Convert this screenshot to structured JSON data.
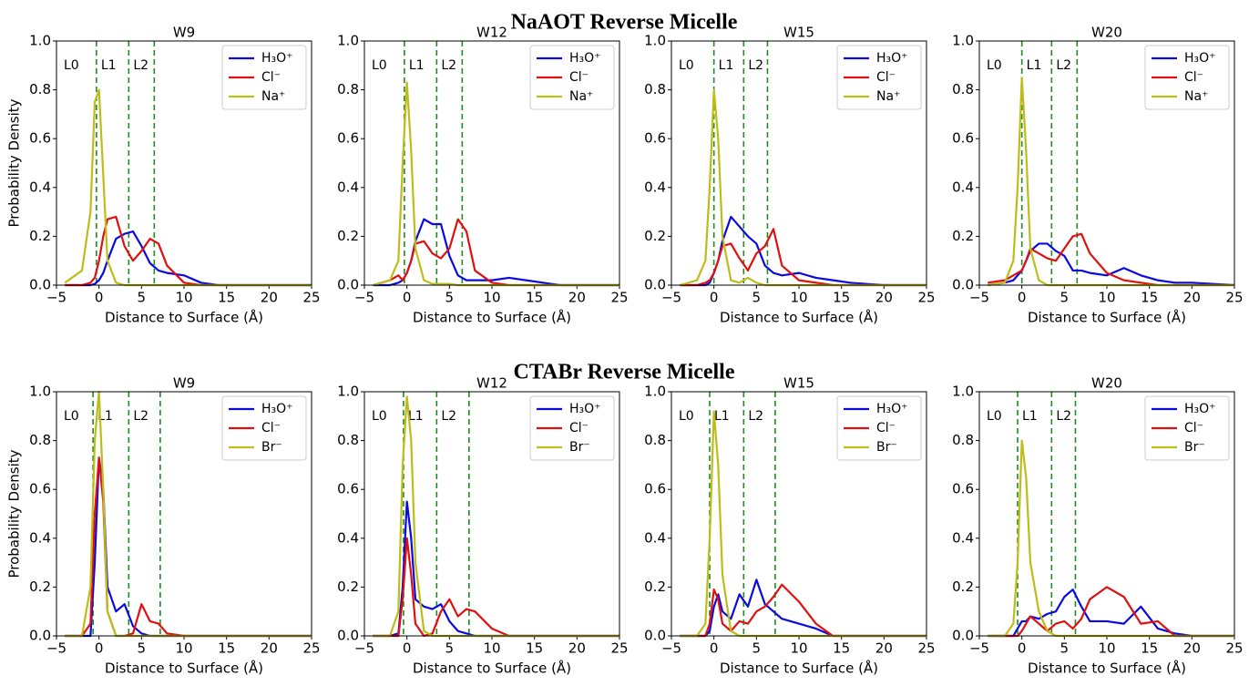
{
  "headings": [
    "NaAOT Reverse Micelle",
    "CTABr Reverse Micelle"
  ],
  "chart_data": [
    {
      "type": "line",
      "title": "W9",
      "x_label": "Distance to Surface (Å)",
      "y_label": "Probability Density",
      "xlim": [
        -5,
        25
      ],
      "ylim": [
        0,
        1
      ],
      "xticks": [
        {
          "value": -5,
          "label": "−5"
        },
        0,
        5,
        10,
        15,
        20,
        25
      ],
      "yticks": [
        {
          "value": 0,
          "label": "0.0"
        },
        0.2,
        0.4,
        0.6,
        0.8,
        {
          "value": 1,
          "label": "1.0"
        }
      ],
      "vlines": [
        -0.3,
        3.5,
        6.5
      ],
      "region_labels": [
        "L0",
        "L1",
        "L2"
      ],
      "legend": "upper right",
      "x": [
        -4,
        -2,
        -1,
        -0.5,
        0,
        0.5,
        1,
        2,
        3,
        4,
        5,
        6,
        7,
        8,
        10,
        12,
        14,
        16,
        18,
        20,
        25
      ],
      "series": [
        {
          "name": "H₃O⁺",
          "color": "#0a0ae0",
          "values": [
            0,
            0,
            0,
            0.005,
            0.02,
            0.05,
            0.1,
            0.19,
            0.21,
            0.22,
            0.16,
            0.09,
            0.06,
            0.05,
            0.04,
            0.01,
            0,
            0,
            0,
            0,
            0
          ]
        },
        {
          "name": "Cl⁻",
          "color": "#e01010",
          "values": [
            0,
            0,
            0.01,
            0.03,
            0.1,
            0.2,
            0.27,
            0.28,
            0.16,
            0.1,
            0.14,
            0.19,
            0.17,
            0.08,
            0.01,
            0,
            0,
            0,
            0,
            0,
            0
          ]
        },
        {
          "name": "Na⁺",
          "color": "#bdbd1a",
          "values": [
            0.01,
            0.06,
            0.3,
            0.75,
            0.8,
            0.45,
            0.1,
            0.01,
            0,
            0,
            0,
            0,
            0,
            0,
            0,
            0,
            0,
            0,
            0,
            0,
            0
          ]
        }
      ]
    },
    {
      "type": "line",
      "title": "W12",
      "x_label": "Distance to Surface (Å)",
      "xlim": [
        -5,
        25
      ],
      "ylim": [
        0,
        1
      ],
      "xticks": [
        {
          "value": -5,
          "label": "−5"
        },
        0,
        5,
        10,
        15,
        20,
        25
      ],
      "yticks": [
        {
          "value": 0,
          "label": "0.0"
        },
        0.2,
        0.4,
        0.6,
        0.8,
        {
          "value": 1,
          "label": "1.0"
        }
      ],
      "vlines": [
        -0.3,
        3.5,
        6.5
      ],
      "region_labels": [
        "L0",
        "L1",
        "L2"
      ],
      "legend": "upper right",
      "x": [
        -4,
        -2,
        -1,
        -0.5,
        0,
        0.5,
        1,
        2,
        3,
        4,
        5,
        6,
        7,
        8,
        10,
        12,
        14,
        16,
        18,
        20,
        25
      ],
      "series": [
        {
          "name": "H₃O⁺",
          "color": "#0a0ae0",
          "values": [
            0,
            0,
            0.01,
            0.02,
            0.05,
            0.1,
            0.18,
            0.27,
            0.25,
            0.25,
            0.12,
            0.04,
            0.02,
            0.02,
            0.02,
            0.03,
            0.02,
            0.01,
            0,
            0,
            0
          ]
        },
        {
          "name": "Cl⁻",
          "color": "#e01010",
          "values": [
            0,
            0.02,
            0.04,
            0.02,
            0.05,
            0.1,
            0.17,
            0.18,
            0.13,
            0.11,
            0.15,
            0.27,
            0.22,
            0.06,
            0.01,
            0,
            0,
            0,
            0,
            0,
            0
          ]
        },
        {
          "name": "Na⁺",
          "color": "#bdbd1a",
          "values": [
            0,
            0.02,
            0.1,
            0.5,
            0.83,
            0.55,
            0.15,
            0.02,
            0.005,
            0.005,
            0.005,
            0,
            0,
            0,
            0,
            0,
            0,
            0,
            0,
            0,
            0
          ]
        }
      ]
    },
    {
      "type": "line",
      "title": "W15",
      "x_label": "Distance to Surface (Å)",
      "xlim": [
        -5,
        25
      ],
      "ylim": [
        0,
        1
      ],
      "xticks": [
        {
          "value": -5,
          "label": "−5"
        },
        0,
        5,
        10,
        15,
        20,
        25
      ],
      "yticks": [
        {
          "value": 0,
          "label": "0.0"
        },
        0.2,
        0.4,
        0.6,
        0.8,
        {
          "value": 1,
          "label": "1.0"
        }
      ],
      "vlines": [
        0,
        3.5,
        6.3
      ],
      "region_labels": [
        "L0",
        "L1",
        "L2"
      ],
      "legend": "upper right",
      "x": [
        -4,
        -2,
        -1,
        -0.5,
        0,
        0.5,
        1,
        2,
        3,
        4,
        5,
        6,
        7,
        8,
        10,
        12,
        14,
        16,
        18,
        20,
        25
      ],
      "series": [
        {
          "name": "H₃O⁺",
          "color": "#0a0ae0",
          "values": [
            0,
            0,
            0,
            0.01,
            0.05,
            0.1,
            0.18,
            0.28,
            0.24,
            0.2,
            0.17,
            0.08,
            0.05,
            0.04,
            0.05,
            0.03,
            0.02,
            0.01,
            0.005,
            0,
            0
          ]
        },
        {
          "name": "Cl⁻",
          "color": "#e01010",
          "values": [
            0,
            0,
            0.01,
            0.02,
            0.05,
            0.1,
            0.16,
            0.17,
            0.11,
            0.06,
            0.13,
            0.16,
            0.23,
            0.08,
            0.02,
            0.01,
            0,
            0,
            0,
            0,
            0
          ]
        },
        {
          "name": "Na⁺",
          "color": "#bdbd1a",
          "values": [
            0,
            0.02,
            0.1,
            0.4,
            0.8,
            0.6,
            0.2,
            0.02,
            0.01,
            0.03,
            0.01,
            0,
            0,
            0,
            0,
            0,
            0,
            0,
            0,
            0,
            0
          ]
        }
      ]
    },
    {
      "type": "line",
      "title": "W20",
      "x_label": "Distance to Surface (Å)",
      "xlim": [
        -5,
        25
      ],
      "ylim": [
        0,
        1
      ],
      "xticks": [
        {
          "value": -5,
          "label": "−5"
        },
        0,
        5,
        10,
        15,
        20,
        25
      ],
      "yticks": [
        {
          "value": 0,
          "label": "0.0"
        },
        0.2,
        0.4,
        0.6,
        0.8,
        {
          "value": 1,
          "label": "1.0"
        }
      ],
      "vlines": [
        0,
        3.5,
        6.5
      ],
      "region_labels": [
        "L0",
        "L1",
        "L2"
      ],
      "legend": "upper right",
      "x": [
        -4,
        -2,
        -1,
        -0.5,
        0,
        0.5,
        1,
        2,
        3,
        4,
        5,
        6,
        7,
        8,
        10,
        12,
        14,
        16,
        18,
        20,
        25
      ],
      "series": [
        {
          "name": "H₃O⁺",
          "color": "#0a0ae0",
          "values": [
            0,
            0.01,
            0.02,
            0.04,
            0.06,
            0.1,
            0.14,
            0.17,
            0.17,
            0.14,
            0.12,
            0.06,
            0.06,
            0.05,
            0.04,
            0.07,
            0.04,
            0.02,
            0.01,
            0.01,
            0
          ]
        },
        {
          "name": "Cl⁻",
          "color": "#e01010",
          "values": [
            0.01,
            0.02,
            0.04,
            0.05,
            0.06,
            0.1,
            0.15,
            0.13,
            0.11,
            0.1,
            0.15,
            0.2,
            0.21,
            0.13,
            0.05,
            0.02,
            0.01,
            0,
            0,
            0,
            0
          ]
        },
        {
          "name": "Na⁺",
          "color": "#bdbd1a",
          "values": [
            0,
            0.01,
            0.1,
            0.4,
            0.85,
            0.55,
            0.15,
            0.02,
            0,
            0,
            0,
            0,
            0,
            0,
            0,
            0,
            0,
            0,
            0,
            0,
            0
          ]
        }
      ]
    },
    {
      "type": "line",
      "title": "W9",
      "x_label": "Distance to Surface (Å)",
      "y_label": "Probability Density",
      "xlim": [
        -5,
        25
      ],
      "ylim": [
        0,
        1
      ],
      "xticks": [
        {
          "value": -5,
          "label": "−5"
        },
        0,
        5,
        10,
        15,
        20,
        25
      ],
      "yticks": [
        {
          "value": 0,
          "label": "0.0"
        },
        0.2,
        0.4,
        0.6,
        0.8,
        {
          "value": 1,
          "label": "1.0"
        }
      ],
      "vlines": [
        -0.7,
        3.5,
        7.2
      ],
      "region_labels": [
        "L0",
        "L1",
        "L2"
      ],
      "legend": "upper right",
      "x": [
        -4,
        -2,
        -1,
        -0.5,
        0,
        0.5,
        1,
        2,
        3,
        4,
        5,
        6,
        7,
        8,
        10,
        12,
        14,
        16,
        18,
        20,
        25
      ],
      "series": [
        {
          "name": "H₃O⁺",
          "color": "#0a0ae0",
          "values": [
            0,
            0,
            0,
            0.3,
            0.73,
            0.6,
            0.2,
            0.1,
            0.13,
            0.04,
            0.01,
            0,
            0,
            0,
            0,
            0,
            0,
            0,
            0,
            0,
            0
          ]
        },
        {
          "name": "Cl⁻",
          "color": "#e01010",
          "values": [
            0,
            0,
            0.05,
            0.5,
            0.73,
            0.55,
            0.1,
            0,
            0,
            0.01,
            0.13,
            0.06,
            0.05,
            0.01,
            0,
            0,
            0,
            0,
            0,
            0,
            0
          ]
        },
        {
          "name": "Br⁻",
          "color": "#bdbd1a",
          "values": [
            0,
            0,
            0.2,
            0.8,
            1.0,
            0.6,
            0.1,
            0,
            0,
            0,
            0,
            0,
            0,
            0,
            0,
            0,
            0,
            0,
            0,
            0,
            0
          ]
        }
      ]
    },
    {
      "type": "line",
      "title": "W12",
      "x_label": "Distance to Surface (Å)",
      "xlim": [
        -5,
        25
      ],
      "ylim": [
        0,
        1
      ],
      "xticks": [
        {
          "value": -5,
          "label": "−5"
        },
        0,
        5,
        10,
        15,
        20,
        25
      ],
      "yticks": [
        {
          "value": 0,
          "label": "0.0"
        },
        0.2,
        0.4,
        0.6,
        0.8,
        {
          "value": 1,
          "label": "1.0"
        }
      ],
      "vlines": [
        -0.4,
        3.5,
        7.3
      ],
      "region_labels": [
        "L0",
        "L1",
        "L2"
      ],
      "legend": "upper right",
      "x": [
        -4,
        -2,
        -1,
        -0.5,
        0,
        0.5,
        1,
        2,
        3,
        4,
        5,
        6,
        7,
        8,
        10,
        12,
        14,
        16,
        18,
        20,
        25
      ],
      "series": [
        {
          "name": "H₃O⁺",
          "color": "#0a0ae0",
          "values": [
            0,
            0,
            0.01,
            0.2,
            0.55,
            0.4,
            0.15,
            0.12,
            0.11,
            0.13,
            0.06,
            0.02,
            0.01,
            0,
            0,
            0,
            0,
            0,
            0,
            0,
            0
          ]
        },
        {
          "name": "Cl⁻",
          "color": "#e01010",
          "values": [
            0,
            0,
            0,
            0.15,
            0.4,
            0.25,
            0.05,
            0,
            0.01,
            0.1,
            0.15,
            0.08,
            0.11,
            0.1,
            0.03,
            0,
            0,
            0,
            0,
            0,
            0
          ]
        },
        {
          "name": "Br⁻",
          "color": "#bdbd1a",
          "values": [
            0,
            0,
            0.1,
            0.7,
            0.98,
            0.8,
            0.3,
            0.02,
            0,
            0,
            0,
            0,
            0,
            0,
            0,
            0,
            0,
            0,
            0,
            0,
            0
          ]
        }
      ]
    },
    {
      "type": "line",
      "title": "W15",
      "x_label": "Distance to Surface (Å)",
      "xlim": [
        -5,
        25
      ],
      "ylim": [
        0,
        1
      ],
      "xticks": [
        {
          "value": -5,
          "label": "−5"
        },
        0,
        5,
        10,
        15,
        20,
        25
      ],
      "yticks": [
        {
          "value": 0,
          "label": "0.0"
        },
        0.2,
        0.4,
        0.6,
        0.8,
        {
          "value": 1,
          "label": "1.0"
        }
      ],
      "vlines": [
        -0.5,
        3.5,
        7.2
      ],
      "region_labels": [
        "L0",
        "L1",
        "L2"
      ],
      "legend": "upper right",
      "x": [
        -4,
        -2,
        -1,
        -0.5,
        0,
        0.5,
        1,
        2,
        3,
        4,
        5,
        6,
        7,
        8,
        10,
        12,
        14,
        16,
        18,
        20,
        25
      ],
      "series": [
        {
          "name": "H₃O⁺",
          "color": "#0a0ae0",
          "values": [
            0,
            0,
            0,
            0.02,
            0.12,
            0.17,
            0.1,
            0.07,
            0.17,
            0.12,
            0.23,
            0.13,
            0.1,
            0.07,
            0.05,
            0.03,
            0,
            0,
            0,
            0,
            0
          ]
        },
        {
          "name": "Cl⁻",
          "color": "#e01010",
          "values": [
            0,
            0,
            0,
            0.05,
            0.19,
            0.15,
            0.05,
            0.02,
            0.06,
            0.05,
            0.1,
            0.12,
            0.16,
            0.21,
            0.14,
            0.05,
            0,
            0,
            0,
            0,
            0
          ]
        },
        {
          "name": "Br⁻",
          "color": "#bdbd1a",
          "values": [
            0,
            0,
            0.05,
            0.4,
            0.92,
            0.7,
            0.25,
            0.02,
            0,
            0,
            0,
            0,
            0,
            0,
            0,
            0,
            0,
            0,
            0,
            0,
            0
          ]
        }
      ]
    },
    {
      "type": "line",
      "title": "W20",
      "x_label": "Distance to Surface (Å)",
      "xlim": [
        -5,
        25
      ],
      "ylim": [
        0,
        1
      ],
      "xticks": [
        {
          "value": -5,
          "label": "−5"
        },
        0,
        5,
        10,
        15,
        20,
        25
      ],
      "yticks": [
        {
          "value": 0,
          "label": "0.0"
        },
        0.2,
        0.4,
        0.6,
        0.8,
        {
          "value": 1,
          "label": "1.0"
        }
      ],
      "vlines": [
        -0.5,
        3.5,
        6.3
      ],
      "region_labels": [
        "L0",
        "L1",
        "L2"
      ],
      "legend": "upper right",
      "x": [
        -4,
        -2,
        -1,
        -0.5,
        0,
        0.5,
        1,
        2,
        3,
        4,
        5,
        6,
        7,
        8,
        10,
        12,
        14,
        16,
        18,
        20,
        25
      ],
      "series": [
        {
          "name": "H₃O⁺",
          "color": "#0a0ae0",
          "values": [
            0,
            0,
            0,
            0.03,
            0.06,
            0.06,
            0.08,
            0.07,
            0.09,
            0.1,
            0.16,
            0.19,
            0.12,
            0.06,
            0.06,
            0.05,
            0.12,
            0.03,
            0.01,
            0,
            0
          ]
        },
        {
          "name": "Cl⁻",
          "color": "#e01010",
          "values": [
            0,
            0,
            0,
            0,
            0.02,
            0.05,
            0.08,
            0.05,
            0.02,
            0.05,
            0.06,
            0.03,
            0.07,
            0.15,
            0.2,
            0.16,
            0.05,
            0.06,
            0,
            0,
            0
          ]
        },
        {
          "name": "Br⁻",
          "color": "#bdbd1a",
          "values": [
            0,
            0,
            0.05,
            0.3,
            0.8,
            0.65,
            0.3,
            0.1,
            0.02,
            0,
            0,
            0,
            0,
            0,
            0,
            0,
            0,
            0,
            0,
            0,
            0
          ]
        }
      ]
    }
  ]
}
